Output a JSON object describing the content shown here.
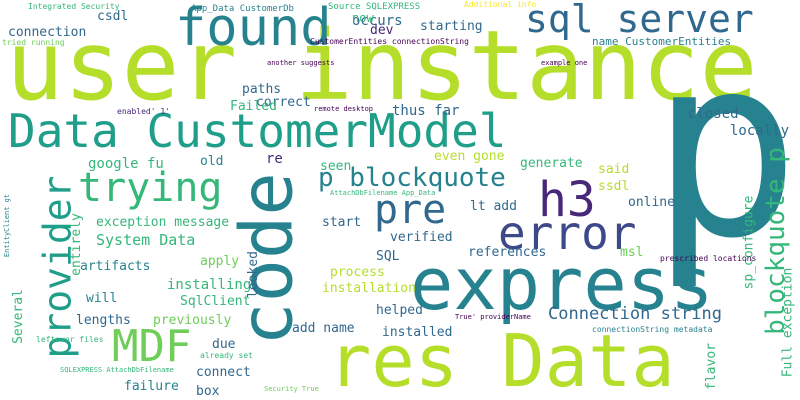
{
  "palette": {
    "lime": "#b5de2b",
    "green": "#6ece58",
    "teal_green": "#35b779",
    "teal": "#1f9e89",
    "dark_teal": "#26828e",
    "blue": "#31688e",
    "slate": "#3e4989",
    "purple": "#482878",
    "deep": "#440154",
    "yellow": "#fde725"
  },
  "words": [
    {
      "text": "user instance",
      "color": "#b5de2b"
    },
    {
      "text": "p",
      "color": "#26828e"
    },
    {
      "text": "express",
      "color": "#26828e"
    },
    {
      "text": "res Data",
      "color": "#b5de2b"
    },
    {
      "text": "code",
      "color": "#26828e"
    },
    {
      "text": "Data CustomerModel",
      "color": "#1f9e89"
    },
    {
      "text": "found",
      "color": "#26828e"
    },
    {
      "text": "sql server",
      "color": "#31688e"
    },
    {
      "text": "trying",
      "color": "#35b779"
    },
    {
      "text": "error",
      "color": "#3e4989"
    },
    {
      "text": "pre",
      "color": "#31688e"
    },
    {
      "text": "h3",
      "color": "#482878"
    },
    {
      "text": "provider",
      "color": "#1f9e89"
    },
    {
      "text": "p blockquote",
      "color": "#26828e"
    },
    {
      "text": "MDF",
      "color": "#6ece58"
    },
    {
      "text": "blockquote p",
      "color": "#35b779"
    },
    {
      "text": "Connection string",
      "color": "#31688e"
    },
    {
      "text": "System Data",
      "color": "#35b779"
    },
    {
      "text": "exception message",
      "color": "#35b779"
    },
    {
      "text": "Full exception",
      "color": "#35b779"
    },
    {
      "text": "SqlClient",
      "color": "#35b779"
    },
    {
      "text": "installing",
      "color": "#35b779"
    },
    {
      "text": "artifacts",
      "color": "#26828e"
    },
    {
      "text": "apply",
      "color": "#6ece58"
    },
    {
      "text": "previously",
      "color": "#6ece58"
    },
    {
      "text": "lengths",
      "color": "#31688e"
    },
    {
      "text": "will",
      "color": "#26828e"
    },
    {
      "text": "Several",
      "color": "#35b779"
    },
    {
      "text": "connection",
      "color": "#31688e"
    },
    {
      "text": "csdl",
      "color": "#31688e"
    },
    {
      "text": "occurs",
      "color": "#31688e"
    },
    {
      "text": "starting",
      "color": "#31688e"
    },
    {
      "text": "now",
      "color": "#35b779"
    },
    {
      "text": "dev",
      "color": "#482878"
    },
    {
      "text": "name CustomerEntities",
      "color": "#26828e"
    },
    {
      "text": "paths",
      "color": "#31688e"
    },
    {
      "text": "correct",
      "color": "#31688e"
    },
    {
      "text": "Failed",
      "color": "#35b779"
    },
    {
      "text": "thus far",
      "color": "#31688e"
    },
    {
      "text": "closed",
      "color": "#31688e"
    },
    {
      "text": "locally",
      "color": "#31688e"
    },
    {
      "text": "google fu",
      "color": "#35b779"
    },
    {
      "text": "old",
      "color": "#26828e"
    },
    {
      "text": "re",
      "color": "#482878"
    },
    {
      "text": "seen",
      "color": "#35b779"
    },
    {
      "text": "even gone",
      "color": "#b5de2b"
    },
    {
      "text": "generate",
      "color": "#35b779"
    },
    {
      "text": "said",
      "color": "#b5de2b"
    },
    {
      "text": "ssdl",
      "color": "#b5de2b"
    },
    {
      "text": "online",
      "color": "#31688e"
    },
    {
      "text": "lt add",
      "color": "#31688e"
    },
    {
      "text": "start",
      "color": "#31688e"
    },
    {
      "text": "verified",
      "color": "#31688e"
    },
    {
      "text": "entirely",
      "color": "#35b779"
    },
    {
      "text": "SQL",
      "color": "#31688e"
    },
    {
      "text": "references",
      "color": "#31688e"
    },
    {
      "text": "msl",
      "color": "#6ece58"
    },
    {
      "text": "process",
      "color": "#b5de2b"
    },
    {
      "text": "installation",
      "color": "#b5de2b"
    },
    {
      "text": "looked",
      "color": "#31688e"
    },
    {
      "text": "helped",
      "color": "#31688e"
    },
    {
      "text": "installed",
      "color": "#31688e"
    },
    {
      "text": "add name",
      "color": "#31688e"
    },
    {
      "text": "due",
      "color": "#31688e"
    },
    {
      "text": "connect",
      "color": "#31688e"
    },
    {
      "text": "failure",
      "color": "#26828e"
    },
    {
      "text": "box",
      "color": "#31688e"
    },
    {
      "text": "flavor",
      "color": "#35b779"
    },
    {
      "text": "sp_configure",
      "color": "#35b779"
    },
    {
      "text": "Integrated Security",
      "color": "#35b779"
    },
    {
      "text": "App_Data CustomerDb",
      "color": "#26828e"
    },
    {
      "text": "Source SQLEXPRESS",
      "color": "#35b779"
    },
    {
      "text": "Additional info",
      "color": "#fde725"
    },
    {
      "text": "tried running",
      "color": "#6ece58"
    },
    {
      "text": "CustomerEntities connectionString",
      "color": "#440154"
    },
    {
      "text": "another suggests",
      "color": "#440154"
    },
    {
      "text": "example one",
      "color": "#440154"
    },
    {
      "text": "enabled' 1'",
      "color": "#482878"
    },
    {
      "text": "remote desktop",
      "color": "#440154"
    },
    {
      "text": "AttachDbFilename App_Data",
      "color": "#35b779"
    },
    {
      "text": "EntityClient gt",
      "color": "#26828e"
    },
    {
      "text": "prescribed locations",
      "color": "#440154"
    },
    {
      "text": "True' providerName",
      "color": "#440154"
    },
    {
      "text": "connectionString metadata",
      "color": "#26828e"
    },
    {
      "text": "leftover files",
      "color": "#35b779"
    },
    {
      "text": "SQLEXPRESS AttachDbFilename",
      "color": "#35b779"
    },
    {
      "text": "already set",
      "color": "#35b779"
    },
    {
      "text": "Security True",
      "color": "#6ece58"
    }
  ]
}
